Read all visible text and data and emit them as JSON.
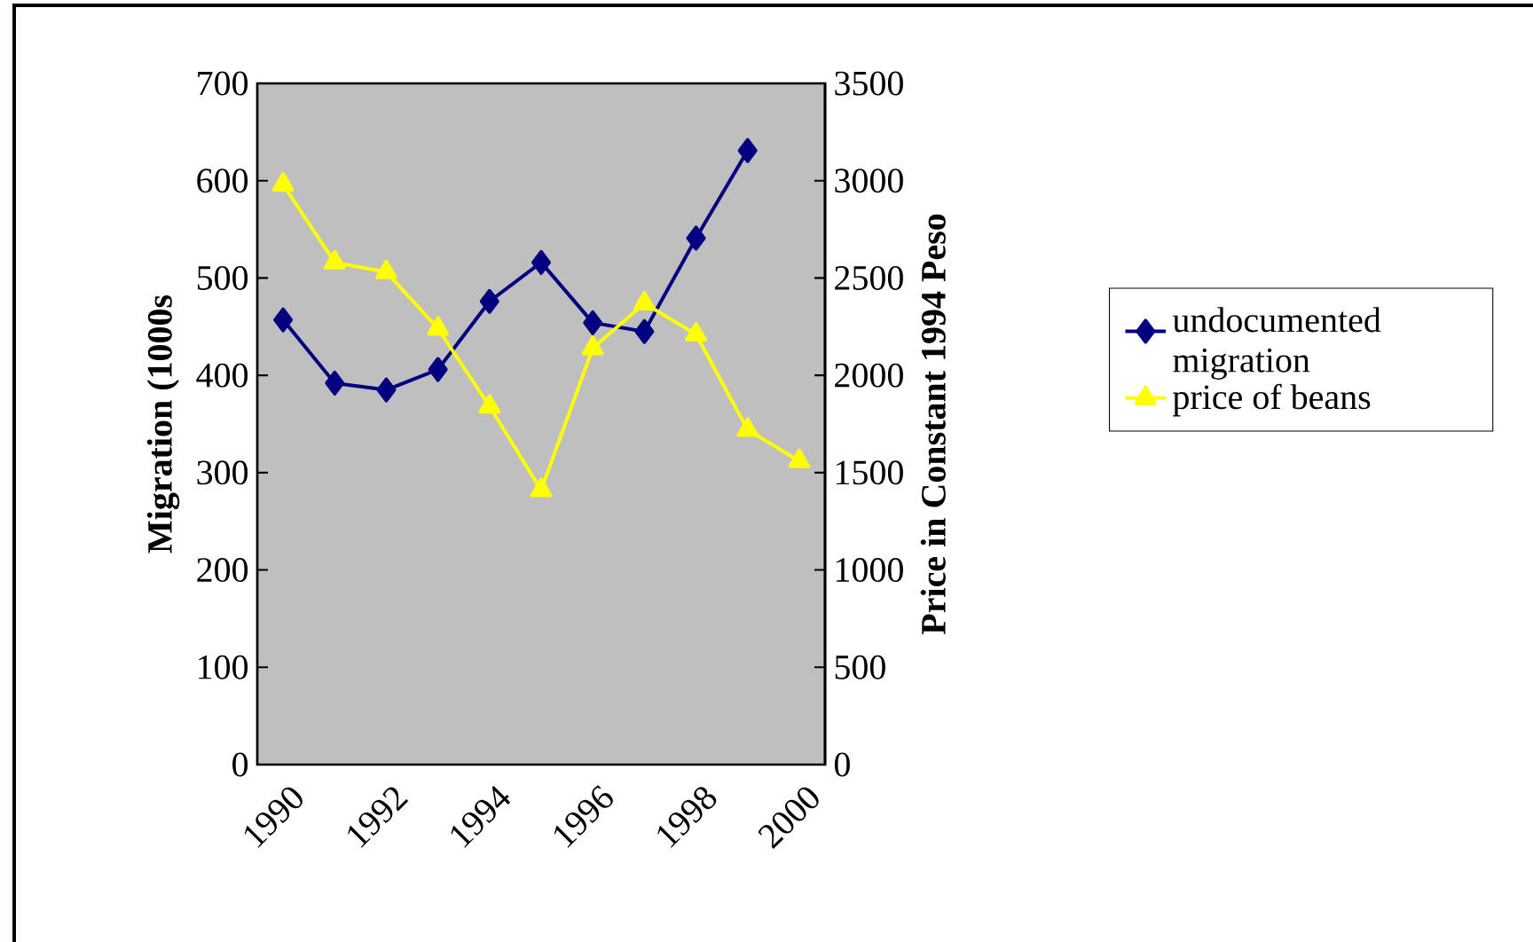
{
  "chart_data": {
    "type": "line",
    "categories": [
      "1990",
      null,
      "1992",
      null,
      "1994",
      null,
      "1996",
      null,
      "1998",
      null,
      "2000"
    ],
    "ylabel": "Migration (1000s",
    "y2label": "Price in Constant 1994 Peso",
    "ylim": [
      0,
      700
    ],
    "yticks": [
      0,
      100,
      200,
      300,
      400,
      500,
      600,
      700
    ],
    "y2lim": [
      0,
      3500
    ],
    "y2ticks": [
      0,
      500,
      1000,
      1500,
      2000,
      2500,
      3000,
      3500
    ],
    "series": [
      {
        "name": "undocumented migration",
        "color": "#000080",
        "marker": "diamond",
        "values": [
          457,
          392,
          385,
          406,
          476,
          516,
          454,
          445,
          541,
          631,
          null
        ]
      },
      {
        "name": "price of beans",
        "color": "#ffff00",
        "marker": "triangle",
        "axis": "y2",
        "values": [
          2980,
          2580,
          2530,
          2240,
          1840,
          1410,
          2140,
          2370,
          2210,
          1720,
          1560
        ]
      }
    ],
    "grid": false,
    "legend": "right"
  }
}
